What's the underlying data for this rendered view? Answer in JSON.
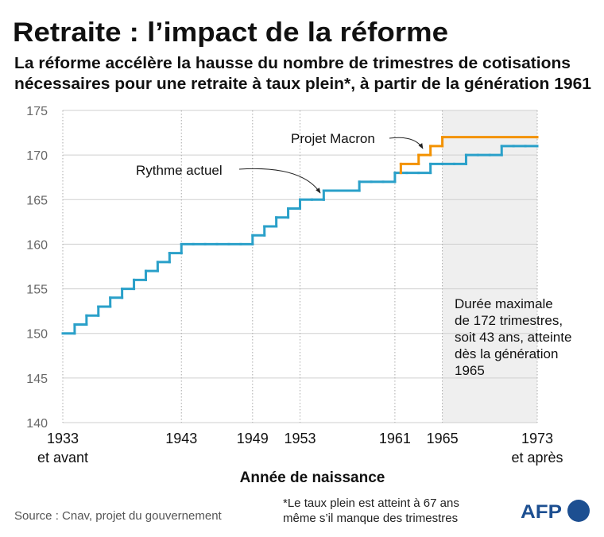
{
  "chart_data": {
    "type": "step",
    "title": "Retraite : l’impact de la réforme",
    "subtitle": [
      "La réforme accélère la hausse du nombre de trimestres de cotisations",
      "nécessaires pour une retraite à taux plein*, à partir de la génération 1961"
    ],
    "x_label": "Année de naissance",
    "series": [
      {
        "name": "Rythme actuel",
        "color": "#2aa0c9",
        "x": [
          1933,
          1934,
          1935,
          1936,
          1937,
          1938,
          1939,
          1940,
          1941,
          1942,
          1943,
          1944,
          1945,
          1946,
          1947,
          1948,
          1949,
          1950,
          1951,
          1952,
          1953,
          1954,
          1955,
          1956,
          1957,
          1958,
          1959,
          1960,
          1961,
          1962,
          1963,
          1964,
          1965,
          1966,
          1967,
          1968,
          1969,
          1970,
          1971,
          1972,
          1973
        ],
        "values": [
          150,
          151,
          152,
          153,
          154,
          155,
          156,
          157,
          158,
          159,
          160,
          160,
          160,
          160,
          160,
          160,
          161,
          162,
          163,
          164,
          165,
          165,
          166,
          166,
          166,
          167,
          167,
          167,
          168,
          168,
          168,
          169,
          169,
          169,
          170,
          170,
          170,
          171,
          171,
          171,
          171
        ]
      },
      {
        "name": "Projet Macron",
        "color": "#f39200",
        "x": [
          1961.5,
          1961.5,
          1963,
          1964,
          1965,
          1973
        ],
        "values": [
          168,
          169,
          170,
          171,
          172,
          172
        ]
      }
    ],
    "xlim": [
      1933,
      1973
    ],
    "xticks": [
      {
        "value": 1933,
        "label": "1933",
        "note": "et avant"
      },
      1943,
      1949,
      1953,
      1961,
      1965,
      {
        "value": 1973,
        "label": "1973",
        "note": "et après"
      }
    ],
    "ylim": [
      140,
      175
    ],
    "yticks": [
      140,
      145,
      150,
      155,
      160,
      165,
      170,
      175
    ],
    "grid": true,
    "highlight_xrange": [
      1965,
      1973
    ],
    "annotation": [
      "Durée maximale",
      "de 172 trimestres,",
      "soit 43 ans, atteinte",
      "dès la génération",
      "1965"
    ],
    "source": "Source : Cnav, projet du gouvernement",
    "footnote": [
      "*Le taux plein est atteint à 67 ans",
      "même s’il manque des trimestres"
    ],
    "logo": "AFP"
  }
}
